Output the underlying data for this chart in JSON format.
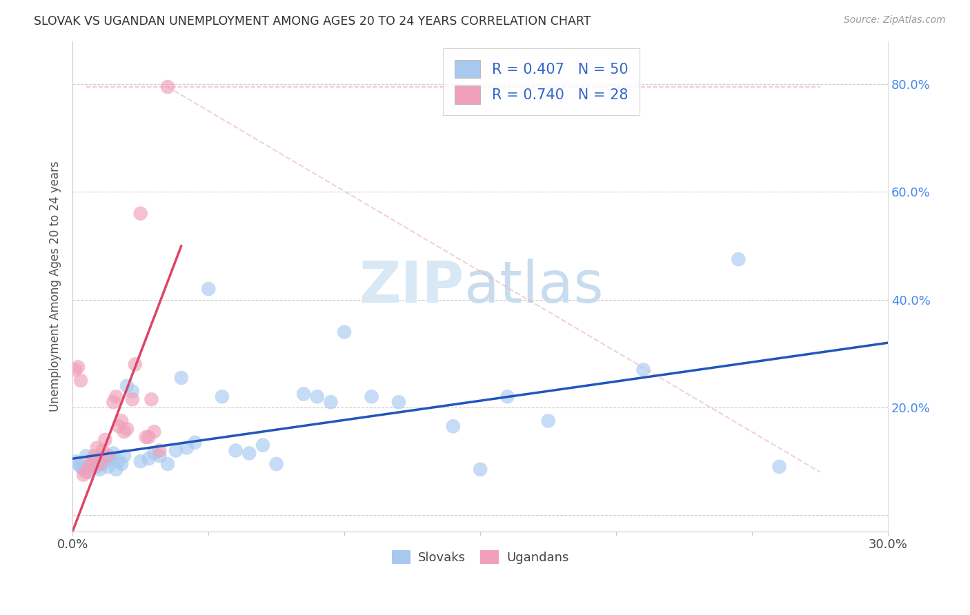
{
  "title": "SLOVAK VS UGANDAN UNEMPLOYMENT AMONG AGES 20 TO 24 YEARS CORRELATION CHART",
  "source": "Source: ZipAtlas.com",
  "ylabel": "Unemployment Among Ages 20 to 24 years",
  "xlim": [
    0.0,
    0.3
  ],
  "ylim": [
    -0.03,
    0.88
  ],
  "xticks": [
    0.0,
    0.05,
    0.1,
    0.15,
    0.2,
    0.25,
    0.3
  ],
  "yticks": [
    0.0,
    0.2,
    0.4,
    0.6,
    0.8
  ],
  "blue_color": "#A8C8F0",
  "pink_color": "#F0A0B8",
  "blue_line_color": "#2255BB",
  "pink_line_color": "#DD4466",
  "dash_color": "#E8A0B8",
  "watermark_zip": "ZIP",
  "watermark_atlas": "atlas",
  "slovaks_x": [
    0.001,
    0.002,
    0.003,
    0.004,
    0.005,
    0.006,
    0.007,
    0.008,
    0.009,
    0.01,
    0.01,
    0.011,
    0.012,
    0.013,
    0.014,
    0.015,
    0.016,
    0.017,
    0.018,
    0.019,
    0.02,
    0.022,
    0.025,
    0.028,
    0.03,
    0.032,
    0.035,
    0.038,
    0.04,
    0.042,
    0.045,
    0.05,
    0.055,
    0.06,
    0.065,
    0.07,
    0.075,
    0.085,
    0.09,
    0.095,
    0.1,
    0.11,
    0.12,
    0.14,
    0.15,
    0.16,
    0.175,
    0.21,
    0.245,
    0.26
  ],
  "slovaks_y": [
    0.1,
    0.095,
    0.09,
    0.085,
    0.11,
    0.08,
    0.095,
    0.1,
    0.09,
    0.105,
    0.085,
    0.095,
    0.1,
    0.09,
    0.105,
    0.115,
    0.085,
    0.1,
    0.095,
    0.11,
    0.24,
    0.23,
    0.1,
    0.105,
    0.115,
    0.11,
    0.095,
    0.12,
    0.255,
    0.125,
    0.135,
    0.42,
    0.22,
    0.12,
    0.115,
    0.13,
    0.095,
    0.225,
    0.22,
    0.21,
    0.34,
    0.22,
    0.21,
    0.165,
    0.085,
    0.22,
    0.175,
    0.27,
    0.475,
    0.09
  ],
  "ugandans_x": [
    0.001,
    0.002,
    0.003,
    0.004,
    0.005,
    0.006,
    0.007,
    0.008,
    0.009,
    0.01,
    0.011,
    0.012,
    0.013,
    0.015,
    0.016,
    0.017,
    0.018,
    0.019,
    0.02,
    0.022,
    0.023,
    0.025,
    0.027,
    0.028,
    0.029,
    0.03,
    0.032,
    0.035
  ],
  "ugandans_y": [
    0.27,
    0.275,
    0.25,
    0.075,
    0.08,
    0.09,
    0.1,
    0.11,
    0.125,
    0.095,
    0.12,
    0.14,
    0.11,
    0.21,
    0.22,
    0.165,
    0.175,
    0.155,
    0.16,
    0.215,
    0.28,
    0.56,
    0.145,
    0.145,
    0.215,
    0.155,
    0.12,
    0.795
  ],
  "blue_trendline_x": [
    0.0,
    0.3
  ],
  "blue_trendline_y": [
    0.105,
    0.32
  ],
  "pink_trendline_x": [
    0.0,
    0.04
  ],
  "pink_trendline_y": [
    -0.03,
    0.5
  ],
  "dash_line_x": [
    0.005,
    0.28
  ],
  "dash_line_y": [
    0.795,
    0.795
  ]
}
